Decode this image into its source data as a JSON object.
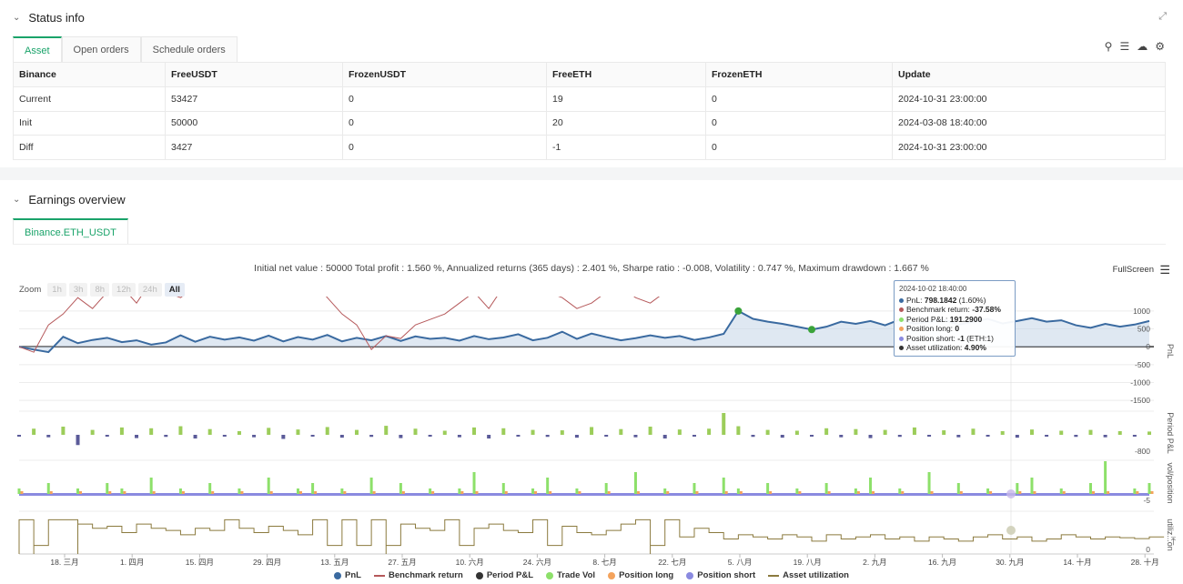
{
  "status": {
    "title": "Status info",
    "tabs": [
      "Asset",
      "Open orders",
      "Schedule orders"
    ],
    "columns": [
      "Binance",
      "FreeUSDT",
      "FrozenUSDT",
      "FreeETH",
      "FrozenETH",
      "Update"
    ],
    "rows": [
      {
        "label": "Current",
        "cells": [
          "53427",
          "0",
          "19",
          "0",
          "2024-10-31 23:00:00"
        ]
      },
      {
        "label": "Init",
        "cells": [
          "50000",
          "0",
          "20",
          "0",
          "2024-03-08 18:40:00"
        ]
      },
      {
        "label": "Diff",
        "cells": [
          "3427",
          "0",
          "-1",
          "0",
          "2024-10-31 23:00:00"
        ]
      }
    ]
  },
  "earnings": {
    "title": "Earnings overview",
    "tab": "Binance.ETH_USDT",
    "summary": "Initial net value : 50000 Total profit : 1.560 %, Annualized returns (365 days) : 2.401 %, Sharpe ratio : -0.008, Volatility : 0.747 %, Maximum drawdown : 1.667 %",
    "fullscreen": "FullScreen",
    "zoom_label": "Zoom",
    "zoom_buttons": [
      "1h",
      "3h",
      "8h",
      "12h",
      "24h",
      "All"
    ],
    "tooltip": {
      "date": "2024-10-02 18:40:00",
      "pnl_label": "PnL: ",
      "pnl_value": "798.1842",
      "pnl_pct": " (1.60%)",
      "bench_label": "Benchmark return: ",
      "bench_value": "-37.58%",
      "period_label": "Period P&L: ",
      "period_value": "191.2900",
      "plong_label": "Position long: ",
      "plong_value": "0",
      "pshort_label": "Position short: ",
      "pshort_value": "-1",
      "pshort_extra": " (ETH:1)",
      "util_label": "Asset utilization: ",
      "util_value": "4.90%"
    },
    "axis_labels": {
      "pnl": "PnL",
      "period": "Period P&L",
      "vol": "vol/position",
      "util": "utiliz...on"
    },
    "y_ticks": {
      "pnl": [
        "1000",
        "500",
        "0",
        "-500",
        "-1000",
        "-1500"
      ],
      "period": [
        "-800"
      ],
      "vol": [
        "-5"
      ],
      "util": [
        "0"
      ]
    },
    "x_ticks": [
      "18. 三月",
      "1. 四月",
      "15. 四月",
      "29. 四月",
      "13. 五月",
      "27. 五月",
      "10. 六月",
      "24. 六月",
      "8. 七月",
      "22. 七月",
      "5. 八月",
      "19. 八月",
      "2. 九月",
      "16. 九月",
      "30. 九月",
      "14. 十月",
      "28. 十月"
    ],
    "legend": [
      {
        "name": "PnL",
        "color": "#3a6aa0",
        "kind": "dot"
      },
      {
        "name": "Benchmark return",
        "color": "#b5585a",
        "kind": "line"
      },
      {
        "name": "Period P&L",
        "color": "#333333",
        "kind": "dot"
      },
      {
        "name": "Trade Vol",
        "color": "#8de06a",
        "kind": "dot"
      },
      {
        "name": "Position long",
        "color": "#f4a35c",
        "kind": "dot"
      },
      {
        "name": "Position short",
        "color": "#8a8ae0",
        "kind": "dot"
      },
      {
        "name": "Asset utilization",
        "color": "#8b7a3e",
        "kind": "line"
      }
    ]
  },
  "chart_data": {
    "type": "line",
    "x_range": [
      "2024-03-08",
      "2024-10-31"
    ],
    "series": [
      {
        "name": "PnL",
        "unit": "USDT",
        "values": [
          0,
          -80,
          -150,
          280,
          100,
          190,
          250,
          130,
          180,
          60,
          120,
          320,
          140,
          280,
          200,
          260,
          170,
          310,
          150,
          270,
          200,
          330,
          150,
          250,
          180,
          300,
          160,
          290,
          220,
          250,
          170,
          300,
          210,
          260,
          350,
          180,
          250,
          420,
          220,
          370,
          270,
          180,
          240,
          320,
          250,
          300,
          190,
          260,
          360,
          1000,
          780,
          700,
          640,
          560,
          480,
          560,
          700,
          640,
          720,
          600,
          760,
          640,
          700,
          750,
          620,
          700,
          780,
          650,
          720,
          800,
          700,
          740,
          600,
          530,
          640,
          560,
          620,
          720
        ]
      },
      {
        "name": "Benchmark return",
        "unit": "%",
        "values": [
          0,
          10,
          -40,
          -60,
          -90,
          -70,
          -100,
          -110,
          -80,
          -120,
          -100,
          -90,
          -110,
          -130,
          -150,
          -170,
          -140,
          -160,
          -130,
          -150,
          -120,
          -90,
          -60,
          -40,
          5,
          -20,
          -15,
          -40,
          -50,
          -60,
          -80,
          -100,
          -70,
          -110,
          -130,
          -120,
          -100,
          -90,
          -70,
          -80,
          -100,
          -110,
          -90,
          -80,
          -100,
          -110,
          -140,
          -120,
          -130,
          -110,
          -140,
          -130,
          -200,
          -180,
          -160,
          -170,
          -150,
          -170,
          -190,
          -180,
          -170,
          -160,
          -170,
          -180,
          -190,
          -180,
          -170,
          -165,
          -160,
          -170,
          -180,
          -170,
          -165,
          -160,
          -150,
          -155,
          -160,
          -150
        ]
      },
      {
        "name": "Period P&L",
        "unit": "USDT",
        "values": [
          -20,
          150,
          -60,
          200,
          -250,
          120,
          -40,
          180,
          -80,
          160,
          -50,
          210,
          -90,
          140,
          -30,
          90,
          -60,
          170,
          -100,
          130,
          -40,
          190,
          -70,
          120,
          -50,
          220,
          -80,
          150,
          -40,
          100,
          -60,
          180,
          -90,
          160,
          -30,
          120,
          -50,
          110,
          -70,
          190,
          -40,
          140,
          -60,
          200,
          -90,
          130,
          -30,
          150,
          600,
          210,
          -50,
          120,
          -70,
          100,
          -40,
          160,
          -60,
          140,
          -80,
          120,
          -50,
          180,
          -40,
          110,
          -60,
          150,
          -30,
          90,
          -70,
          130,
          -40,
          100,
          -50,
          120,
          -60,
          90,
          -40,
          80
        ]
      },
      {
        "name": "Trade Vol",
        "unit": "ETH",
        "values": [
          1,
          0,
          2,
          0,
          1,
          0,
          2,
          1,
          0,
          3,
          0,
          1,
          0,
          2,
          0,
          1,
          0,
          3,
          0,
          1,
          2,
          0,
          1,
          0,
          3,
          0,
          2,
          0,
          1,
          0,
          1,
          4,
          0,
          2,
          0,
          1,
          3,
          0,
          1,
          0,
          2,
          0,
          4,
          0,
          1,
          0,
          2,
          0,
          3,
          1,
          0,
          2,
          0,
          1,
          0,
          2,
          0,
          1,
          3,
          0,
          1,
          0,
          4,
          0,
          2,
          0,
          1,
          0,
          2,
          3,
          0,
          1,
          0,
          2,
          6,
          0,
          1,
          2
        ]
      },
      {
        "name": "Asset utilization",
        "unit": "%",
        "values": [
          80,
          20,
          80,
          80,
          70,
          60,
          65,
          50,
          70,
          60,
          55,
          45,
          60,
          55,
          80,
          60,
          50,
          65,
          55,
          45,
          80,
          20,
          80,
          20,
          80,
          20,
          70,
          60,
          55,
          80,
          20,
          60,
          70,
          55,
          50,
          80,
          20,
          65,
          50,
          45,
          55,
          70,
          80,
          20,
          80,
          40,
          60,
          50,
          35,
          45,
          40,
          35,
          45,
          40,
          30,
          45,
          35,
          40,
          45,
          35,
          40,
          30,
          40,
          35,
          30,
          40,
          45,
          35,
          40,
          30,
          35,
          45,
          40,
          35,
          40,
          38,
          36,
          40
        ]
      }
    ],
    "legend_position": "bottom"
  }
}
